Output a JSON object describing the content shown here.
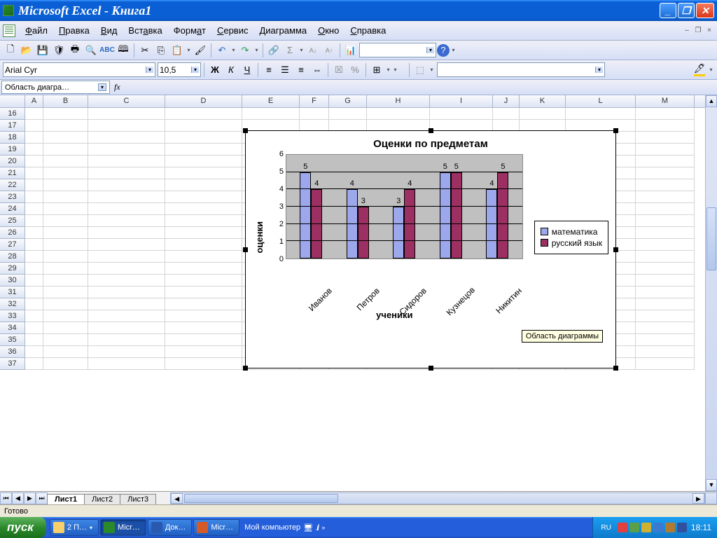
{
  "window": {
    "title": "Microsoft Excel - Книга1"
  },
  "menu": {
    "items": [
      "Файл",
      "Правка",
      "Вид",
      "Вставка",
      "Формат",
      "Сервис",
      "Диаграмма",
      "Окно",
      "Справка"
    ],
    "underlines": [
      0,
      0,
      0,
      3,
      4,
      0,
      0,
      0,
      0
    ]
  },
  "font_toolbar": {
    "font_name": "Arial Cyr",
    "font_size": "10,5"
  },
  "namebox": {
    "value": "Область диагра…"
  },
  "columns": {
    "labels": [
      "A",
      "B",
      "C",
      "D",
      "E",
      "F",
      "G",
      "H",
      "I",
      "J",
      "K",
      "L",
      "M"
    ],
    "widths": [
      26,
      64,
      110,
      110,
      82,
      42,
      54,
      90,
      90,
      38,
      66,
      100,
      84
    ]
  },
  "rows": {
    "start": 16,
    "end": 37
  },
  "chart": {
    "type": "bar",
    "title": "Оценки по предметам",
    "yaxis_label": "оценки",
    "xaxis_label": "ученики",
    "categories": [
      "Иванов",
      "Петров",
      "Сидоров",
      "Кузнецов",
      "Никитин"
    ],
    "series": [
      {
        "name": "математика",
        "color": "#9da8ec",
        "values": [
          5,
          4,
          3,
          5,
          4
        ]
      },
      {
        "name": "русский язык",
        "color": "#9c3063",
        "values": [
          4,
          3,
          4,
          5,
          5
        ]
      }
    ],
    "ylim": [
      0,
      6
    ],
    "ytick_step": 1,
    "plot_bg": "#c0c0c0",
    "gridline_color": "#000000",
    "title_fontsize": 15,
    "label_fontsize": 13,
    "tick_fontsize": 11,
    "bar_border": "#000000",
    "tooltip": "Область диаграммы"
  },
  "sheet_tabs": {
    "tabs": [
      "Лист1",
      "Лист2",
      "Лист3"
    ],
    "active": 0
  },
  "status": {
    "text": "Готово"
  },
  "taskbar": {
    "start": "пуск",
    "buttons": [
      {
        "label": "2 П…",
        "icon": "#f7cf6b",
        "dropdown": true
      },
      {
        "label": "Micr…",
        "icon": "#2a8a2a",
        "active": true
      },
      {
        "label": "Док…",
        "icon": "#2a5ab0"
      },
      {
        "label": "Micr…",
        "icon": "#d45a2a"
      }
    ],
    "desktop_label": "Мой компьютер",
    "lang": "RU",
    "clock": "18:11",
    "tray_icons": [
      "#e04040",
      "#5aa04a",
      "#d0b030",
      "#3a7ad0",
      "#b07a30",
      "#3050a0"
    ]
  }
}
